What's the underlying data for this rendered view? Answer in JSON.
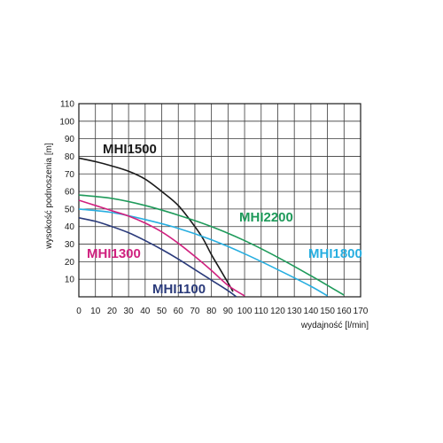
{
  "chart_data": {
    "type": "line",
    "xlabel": "wydajność [l/min]",
    "ylabel": "wysokość podnoszenia [m]",
    "xlim": [
      0,
      170
    ],
    "ylim": [
      0,
      110
    ],
    "x_ticks": [
      0,
      10,
      20,
      30,
      40,
      50,
      60,
      70,
      80,
      90,
      100,
      110,
      120,
      130,
      140,
      150,
      160,
      170
    ],
    "y_ticks": [
      10,
      20,
      30,
      40,
      50,
      60,
      70,
      80,
      90,
      100,
      110
    ],
    "grid": true,
    "series": [
      {
        "name": "MHI1500",
        "color": "#1a1a1a",
        "x": [
          0,
          10,
          20,
          30,
          40,
          50,
          60,
          70,
          75,
          80,
          85,
          90,
          93
        ],
        "y": [
          79,
          77,
          74.5,
          71.5,
          67,
          60,
          52,
          40,
          33,
          24,
          16,
          8,
          3
        ]
      },
      {
        "name": "MHI2200",
        "color": "#1e9a5a",
        "x": [
          0,
          20,
          40,
          60,
          80,
          100,
          120,
          140,
          150,
          160
        ],
        "y": [
          58,
          56,
          52,
          46.5,
          40,
          32,
          22.5,
          12,
          6.5,
          1
        ]
      },
      {
        "name": "MHI1800",
        "color": "#27aee0",
        "x": [
          0,
          20,
          40,
          60,
          80,
          100,
          120,
          140,
          150
        ],
        "y": [
          50,
          48,
          44,
          39,
          32.5,
          24.5,
          15.5,
          6,
          0.5
        ]
      },
      {
        "name": "MHI1300",
        "color": "#d0217f",
        "x": [
          0,
          10,
          20,
          30,
          40,
          50,
          60,
          70,
          80,
          90,
          100
        ],
        "y": [
          55,
          52,
          49,
          46,
          42,
          37,
          30.5,
          23,
          15,
          6.5,
          0.5
        ]
      },
      {
        "name": "MHI1100",
        "color": "#2a3a7a",
        "x": [
          0,
          10,
          20,
          30,
          40,
          50,
          60,
          70,
          80,
          90,
          95
        ],
        "y": [
          45,
          43,
          40,
          36.5,
          32,
          27,
          21.5,
          15.5,
          9.5,
          3.5,
          0
        ]
      }
    ]
  }
}
